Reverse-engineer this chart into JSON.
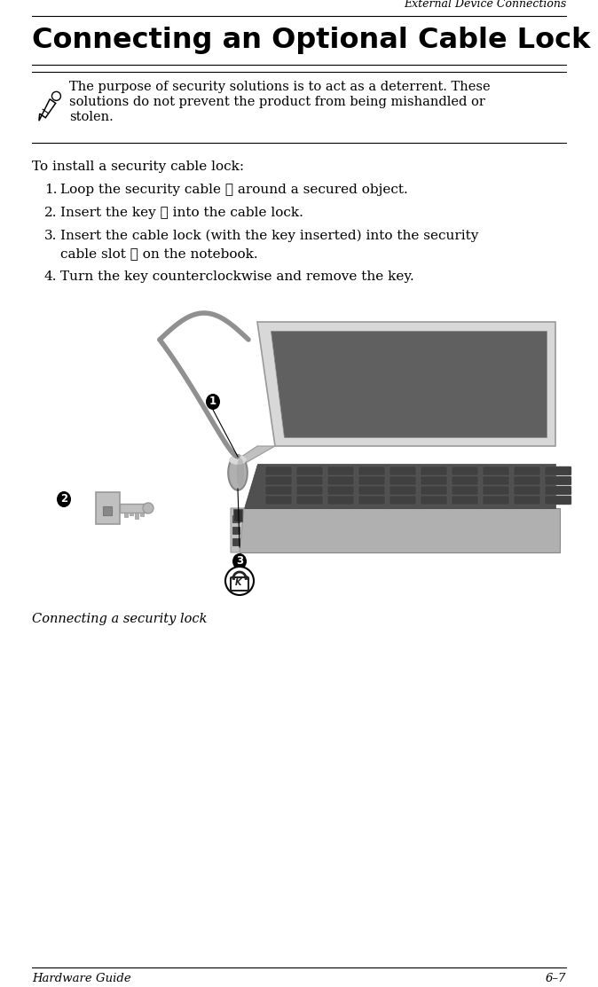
{
  "page_title": "External Device Connections",
  "section_title": "Connecting an Optional Cable Lock",
  "note_line1": "The purpose of security solutions is to act as a deterrent. These",
  "note_line2": "solutions do not prevent the product from being mishandled or",
  "note_line3": "stolen.",
  "intro_text": "To install a security cable lock:",
  "step1": "Loop the security cable ① around a secured object.",
  "step2": "Insert the key ② into the cable lock.",
  "step3a": "Insert the cable lock (with the key inserted) into the security",
  "step3b": "cable slot ③ on the notebook.",
  "step4": "Turn the key counterclockwise and remove the key.",
  "caption": "Connecting a security lock",
  "footer_left": "Hardware Guide",
  "footer_right": "6–7",
  "bg_color": "#ffffff",
  "text_color": "#000000"
}
